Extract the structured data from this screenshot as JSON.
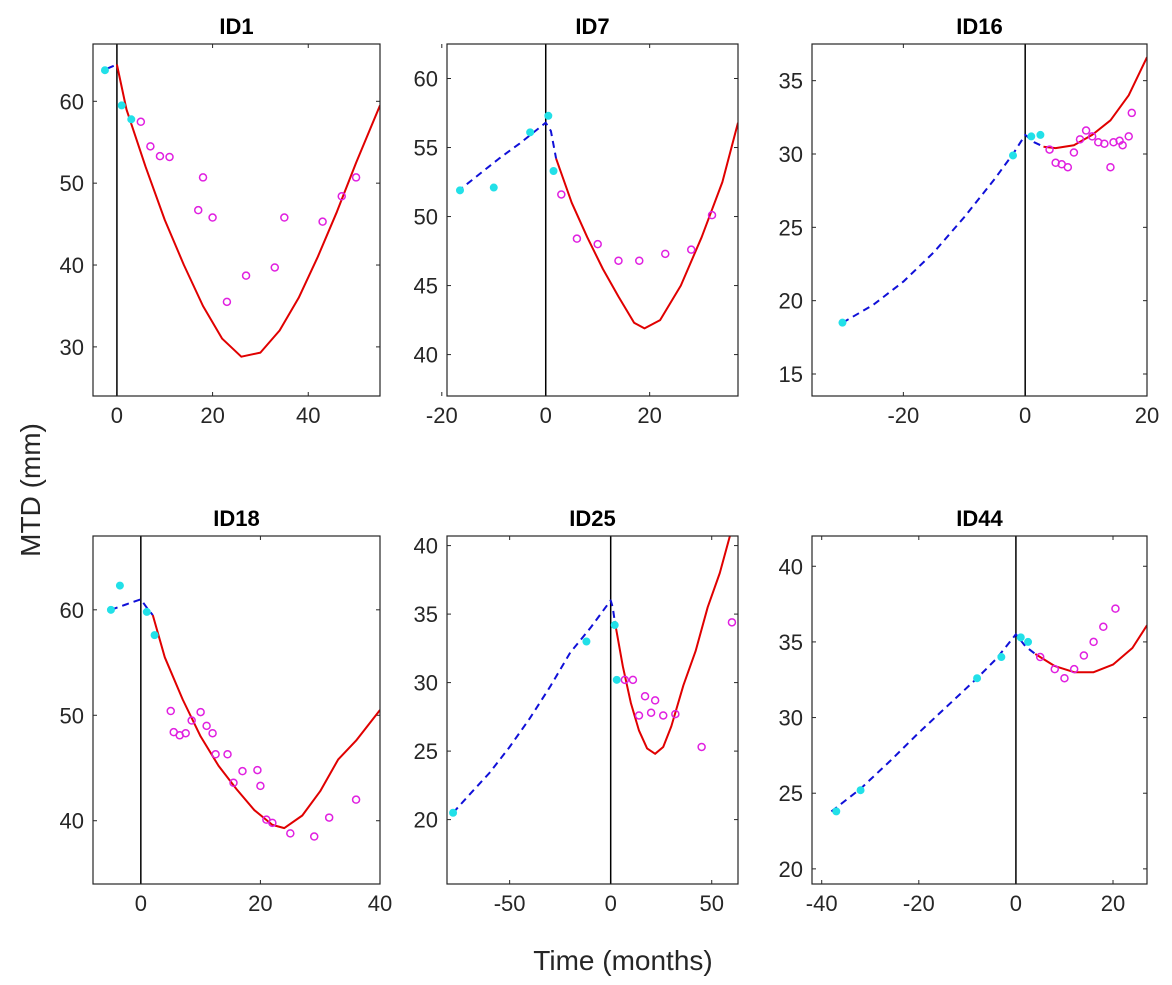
{
  "figure": {
    "ylabel": "MTD (mm)",
    "xlabel": "Time (months)"
  },
  "colors": {
    "pre_fit": "#1010d8",
    "post_fit": "#e00000",
    "pre_obs": "#22e0e8",
    "post_obs": "#e020e0",
    "axis": "#262626",
    "treatment_line": "#000000"
  },
  "chart_data": [
    {
      "type": "scatter",
      "title": "ID1",
      "xlim": [
        -5,
        55
      ],
      "ylim": [
        24,
        67
      ],
      "xticks": [
        0,
        20,
        40
      ],
      "yticks": [
        30,
        40,
        50,
        60
      ],
      "series": [
        {
          "kind": "pre_fit",
          "points": [
            [
              -2,
              64.0
            ],
            [
              0,
              64.5
            ]
          ]
        },
        {
          "kind": "post_fit",
          "points": [
            [
              0,
              64.5
            ],
            [
              2,
              59
            ],
            [
              6,
              52
            ],
            [
              10,
              45.5
            ],
            [
              14,
              40
            ],
            [
              18,
              35
            ],
            [
              22,
              31
            ],
            [
              26,
              28.8
            ],
            [
              30,
              29.3
            ],
            [
              34,
              32
            ],
            [
              38,
              36
            ],
            [
              42,
              41
            ],
            [
              46,
              46.5
            ],
            [
              50,
              52.5
            ],
            [
              55,
              59.5
            ]
          ]
        },
        {
          "kind": "pre_obs",
          "points": [
            [
              -2.5,
              63.8
            ],
            [
              1,
              59.5
            ],
            [
              3,
              57.8
            ]
          ]
        },
        {
          "kind": "post_obs",
          "points": [
            [
              5,
              57.5
            ],
            [
              7,
              54.5
            ],
            [
              9,
              53.3
            ],
            [
              11,
              53.2
            ],
            [
              17,
              46.7
            ],
            [
              18,
              50.7
            ],
            [
              20,
              45.8
            ],
            [
              23,
              35.5
            ],
            [
              27,
              38.7
            ],
            [
              33,
              39.7
            ],
            [
              35,
              45.8
            ],
            [
              43,
              45.3
            ],
            [
              47,
              48.4
            ],
            [
              50,
              50.7
            ]
          ]
        }
      ]
    },
    {
      "type": "scatter",
      "title": "ID7",
      "xlim": [
        -19,
        37
      ],
      "ylim": [
        37,
        62.5
      ],
      "xticks": [
        -20,
        0,
        20
      ],
      "yticks": [
        40,
        45,
        50,
        55,
        60
      ],
      "series": [
        {
          "kind": "pre_fit",
          "points": [
            [
              -17,
              51.8
            ],
            [
              -13,
              53.0
            ],
            [
              -9,
              54.2
            ],
            [
              -5,
              55.3
            ],
            [
              -2,
              56.2
            ],
            [
              0,
              56.8
            ],
            [
              1,
              56.2
            ],
            [
              2,
              54.2
            ]
          ]
        },
        {
          "kind": "post_fit",
          "points": [
            [
              2,
              54.2
            ],
            [
              5,
              51
            ],
            [
              8,
              48.5
            ],
            [
              11,
              46.2
            ],
            [
              14,
              44.2
            ],
            [
              17,
              42.3
            ],
            [
              19,
              41.9
            ],
            [
              22,
              42.5
            ],
            [
              26,
              45
            ],
            [
              30,
              48.5
            ],
            [
              34,
              52.5
            ],
            [
              37,
              56.8
            ]
          ]
        },
        {
          "kind": "pre_obs",
          "points": [
            [
              -16.5,
              51.9
            ],
            [
              -10,
              52.1
            ],
            [
              -3,
              56.1
            ],
            [
              0.5,
              57.3
            ],
            [
              1.5,
              53.3
            ]
          ]
        },
        {
          "kind": "post_obs",
          "points": [
            [
              3,
              51.6
            ],
            [
              6,
              48.4
            ],
            [
              10,
              48.0
            ],
            [
              14,
              46.8
            ],
            [
              18,
              46.8
            ],
            [
              23,
              47.3
            ],
            [
              28,
              47.6
            ],
            [
              32,
              50.1
            ]
          ]
        }
      ]
    },
    {
      "type": "scatter",
      "title": "ID16",
      "xlim": [
        -35,
        20
      ],
      "ylim": [
        13.5,
        37.5
      ],
      "xticks": [
        -20,
        0,
        20
      ],
      "yticks": [
        15,
        20,
        25,
        30,
        35
      ],
      "series": [
        {
          "kind": "pre_fit",
          "points": [
            [
              -30,
              18.5
            ],
            [
              -25,
              19.7
            ],
            [
              -20,
              21.3
            ],
            [
              -15,
              23.3
            ],
            [
              -10,
              25.7
            ],
            [
              -5,
              28.3
            ],
            [
              -2,
              30.0
            ],
            [
              0,
              31.3
            ],
            [
              1.5,
              30.8
            ],
            [
              3,
              30.5
            ]
          ]
        },
        {
          "kind": "post_fit",
          "points": [
            [
              3,
              30.5
            ],
            [
              5,
              30.4
            ],
            [
              8,
              30.6
            ],
            [
              11,
              31.3
            ],
            [
              14,
              32.3
            ],
            [
              17,
              34.0
            ],
            [
              20,
              36.6
            ]
          ]
        },
        {
          "kind": "pre_obs",
          "points": [
            [
              -30,
              18.5
            ],
            [
              -2,
              29.9
            ],
            [
              1,
              31.2
            ],
            [
              2.5,
              31.3
            ]
          ]
        },
        {
          "kind": "post_obs",
          "points": [
            [
              4,
              30.3
            ],
            [
              5,
              29.4
            ],
            [
              6,
              29.3
            ],
            [
              7,
              29.1
            ],
            [
              8,
              30.1
            ],
            [
              9,
              31.0
            ],
            [
              10,
              31.6
            ],
            [
              11,
              31.2
            ],
            [
              12,
              30.8
            ],
            [
              13,
              30.7
            ],
            [
              14,
              29.1
            ],
            [
              14.5,
              30.8
            ],
            [
              15.5,
              30.9
            ],
            [
              16,
              30.6
            ],
            [
              17,
              31.2
            ],
            [
              17.5,
              32.8
            ]
          ]
        }
      ]
    },
    {
      "type": "scatter",
      "title": "ID18",
      "xlim": [
        -8,
        40
      ],
      "ylim": [
        34,
        67
      ],
      "xticks": [
        0,
        20,
        40
      ],
      "yticks": [
        40,
        50,
        60
      ],
      "series": [
        {
          "kind": "pre_fit",
          "points": [
            [
              -5,
              60.0
            ],
            [
              -2.5,
              60.5
            ],
            [
              0,
              61.0
            ],
            [
              1,
              60.2
            ],
            [
              2,
              59.5
            ]
          ]
        },
        {
          "kind": "post_fit",
          "points": [
            [
              2,
              59.5
            ],
            [
              4,
              55.5
            ],
            [
              7,
              51.5
            ],
            [
              10,
              48
            ],
            [
              13,
              45.2
            ],
            [
              16,
              43.0
            ],
            [
              19,
              41.0
            ],
            [
              22,
              39.6
            ],
            [
              24,
              39.3
            ],
            [
              27,
              40.5
            ],
            [
              30,
              42.8
            ],
            [
              33,
              45.8
            ],
            [
              36,
              47.6
            ],
            [
              40,
              50.5
            ]
          ]
        },
        {
          "kind": "pre_obs",
          "points": [
            [
              -5,
              60.0
            ],
            [
              -3.5,
              62.3
            ],
            [
              1,
              59.8
            ],
            [
              2.3,
              57.6
            ]
          ]
        },
        {
          "kind": "post_obs",
          "points": [
            [
              5,
              50.4
            ],
            [
              5.5,
              48.4
            ],
            [
              6.5,
              48.1
            ],
            [
              7.5,
              48.3
            ],
            [
              8.5,
              49.5
            ],
            [
              10,
              50.3
            ],
            [
              11,
              49.0
            ],
            [
              12,
              48.3
            ],
            [
              12.5,
              46.3
            ],
            [
              14.5,
              46.3
            ],
            [
              15.5,
              43.6
            ],
            [
              17,
              44.7
            ],
            [
              19.5,
              44.8
            ],
            [
              20,
              43.3
            ],
            [
              21,
              40.1
            ],
            [
              22,
              39.8
            ],
            [
              25,
              38.8
            ],
            [
              29,
              38.5
            ],
            [
              31.5,
              40.3
            ],
            [
              36,
              42.0
            ]
          ]
        }
      ]
    },
    {
      "type": "scatter",
      "title": "ID25",
      "xlim": [
        -81,
        63
      ],
      "ylim": [
        15.3,
        40.7
      ],
      "xticks": [
        -50,
        0,
        50
      ],
      "yticks": [
        20,
        25,
        30,
        35,
        40
      ],
      "series": [
        {
          "kind": "pre_fit",
          "points": [
            [
              -78,
              20.5
            ],
            [
              -70,
              21.8
            ],
            [
              -60,
              23.4
            ],
            [
              -50,
              25.3
            ],
            [
              -40,
              27.4
            ],
            [
              -30,
              29.7
            ],
            [
              -20,
              32.2
            ],
            [
              -10,
              34.0
            ],
            [
              0,
              36.0
            ],
            [
              1,
              35.5
            ],
            [
              2,
              34.5
            ]
          ]
        },
        {
          "kind": "post_fit",
          "points": [
            [
              2,
              34.5
            ],
            [
              6,
              31.2
            ],
            [
              10,
              28.5
            ],
            [
              14,
              26.5
            ],
            [
              18,
              25.2
            ],
            [
              22,
              24.8
            ],
            [
              26,
              25.3
            ],
            [
              30,
              26.8
            ],
            [
              36,
              29.8
            ],
            [
              42,
              32.3
            ],
            [
              48,
              35.5
            ],
            [
              54,
              38.0
            ],
            [
              59,
              40.7
            ]
          ]
        },
        {
          "kind": "pre_obs",
          "points": [
            [
              -78,
              20.5
            ],
            [
              -12,
              33.0
            ],
            [
              2,
              34.2
            ],
            [
              3,
              30.2
            ]
          ]
        },
        {
          "kind": "post_obs",
          "points": [
            [
              7,
              30.2
            ],
            [
              11,
              30.2
            ],
            [
              14,
              27.6
            ],
            [
              17,
              29.0
            ],
            [
              20,
              27.8
            ],
            [
              22,
              28.7
            ],
            [
              26,
              27.6
            ],
            [
              32,
              27.7
            ],
            [
              45,
              25.3
            ],
            [
              60,
              34.4
            ]
          ]
        }
      ]
    },
    {
      "type": "scatter",
      "title": "ID44",
      "xlim": [
        -42,
        27
      ],
      "ylim": [
        19,
        42
      ],
      "xticks": [
        -40,
        -20,
        0,
        20
      ],
      "yticks": [
        20,
        25,
        30,
        35,
        40
      ],
      "series": [
        {
          "kind": "pre_fit",
          "points": [
            [
              -38,
              23.8
            ],
            [
              -32,
              25.3
            ],
            [
              -26,
              27.1
            ],
            [
              -20,
              29.0
            ],
            [
              -14,
              30.8
            ],
            [
              -8,
              32.6
            ],
            [
              -4,
              33.9
            ],
            [
              0,
              35.5
            ],
            [
              2,
              34.7
            ],
            [
              4,
              34.2
            ]
          ]
        },
        {
          "kind": "post_fit",
          "points": [
            [
              4,
              34.2
            ],
            [
              8,
              33.4
            ],
            [
              12,
              33.0
            ],
            [
              16,
              33.0
            ],
            [
              20,
              33.5
            ],
            [
              24,
              34.6
            ],
            [
              27,
              36.1
            ]
          ]
        },
        {
          "kind": "pre_obs",
          "points": [
            [
              -37,
              23.8
            ],
            [
              -32,
              25.2
            ],
            [
              -8,
              32.6
            ],
            [
              -3,
              34.0
            ],
            [
              1,
              35.3
            ],
            [
              2.5,
              35.0
            ]
          ]
        },
        {
          "kind": "post_obs",
          "points": [
            [
              5,
              34.0
            ],
            [
              8,
              33.2
            ],
            [
              10,
              32.6
            ],
            [
              12,
              33.2
            ],
            [
              14,
              34.1
            ],
            [
              16,
              35.0
            ],
            [
              18,
              36.0
            ],
            [
              20.5,
              37.2
            ]
          ]
        }
      ]
    }
  ]
}
